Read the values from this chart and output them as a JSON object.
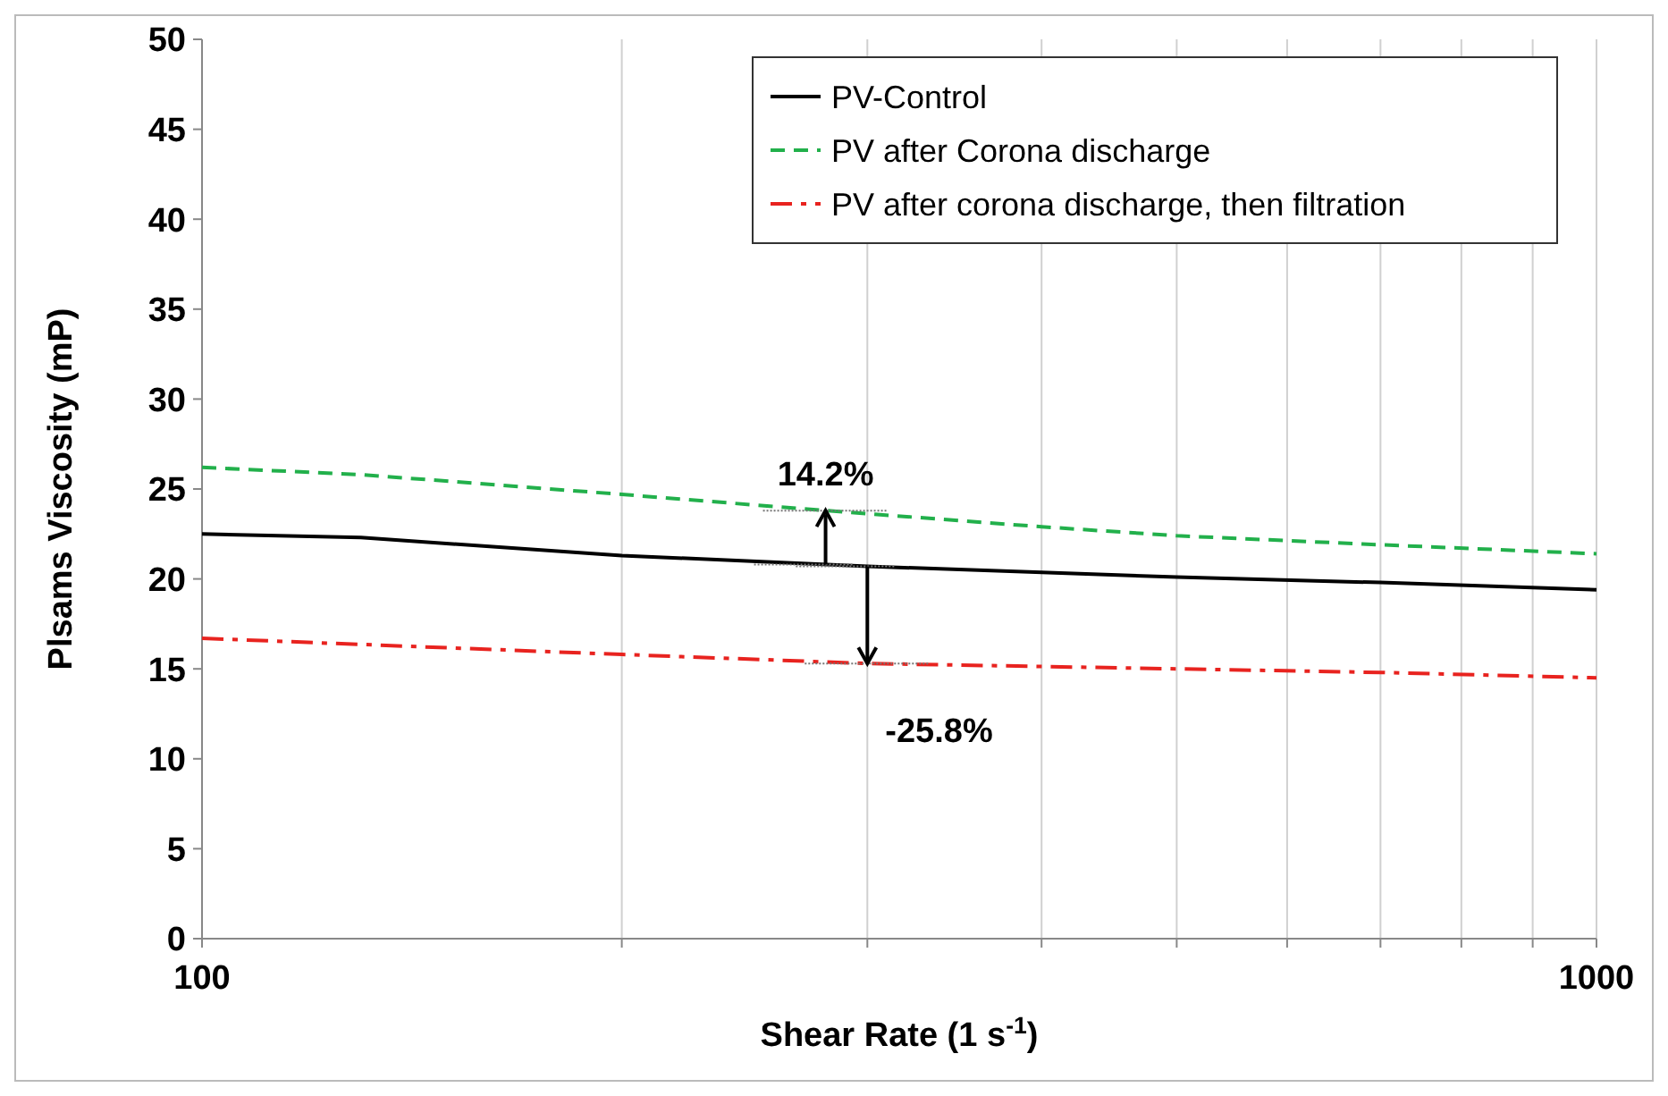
{
  "chart_data": {
    "type": "line",
    "xlabel": "Shear Rate (1 s$^{-1}$)",
    "ylabel": "Plsams Viscosity (mP)",
    "log": "x",
    "xlim": [
      100,
      1000
    ],
    "xticks": [
      100,
      {
        "value": 200,
        "label": null
      },
      {
        "value": 300,
        "label": null
      },
      {
        "value": 400,
        "label": null
      },
      {
        "value": 500,
        "label": null
      },
      {
        "value": 600,
        "label": null
      },
      {
        "value": 700,
        "label": null
      },
      {
        "value": 800,
        "label": null
      },
      {
        "value": 900,
        "label": null
      },
      1000
    ],
    "ylim": [
      0,
      50
    ],
    "yticks": [
      0,
      5,
      10,
      15,
      20,
      25,
      30,
      35,
      40,
      45,
      50
    ],
    "grid": "x",
    "legend": "top right",
    "marker": "none",
    "series": [
      {
        "name": "PV-Control",
        "color": "#000000",
        "line_style": "solid",
        "x": [
          100,
          130,
          200,
          300,
          500,
          700,
          1000
        ],
        "values": [
          22.5,
          22.3,
          21.3,
          20.7,
          20.1,
          19.8,
          19.4
        ]
      },
      {
        "name": "PV after Corona discharge",
        "color": "#22b04b",
        "line_style": "dashed",
        "x": [
          100,
          130,
          200,
          280,
          400,
          500,
          700,
          1000
        ],
        "values": [
          26.2,
          25.8,
          24.7,
          23.8,
          22.9,
          22.4,
          21.9,
          21.4
        ]
      },
      {
        "name": "PV after corona discharge, then filtration",
        "color": "#e8231f",
        "line_style": "dashdot",
        "x": [
          100,
          200,
          300,
          500,
          700,
          1000
        ],
        "values": [
          16.7,
          15.8,
          15.3,
          15.0,
          14.8,
          14.5
        ]
      }
    ],
    "annotations": [
      {
        "text": "14.2%",
        "x": 280,
        "y": 23.8
      },
      {
        "text": "-25.8%",
        "x": 300,
        "y": 15.3
      }
    ]
  }
}
